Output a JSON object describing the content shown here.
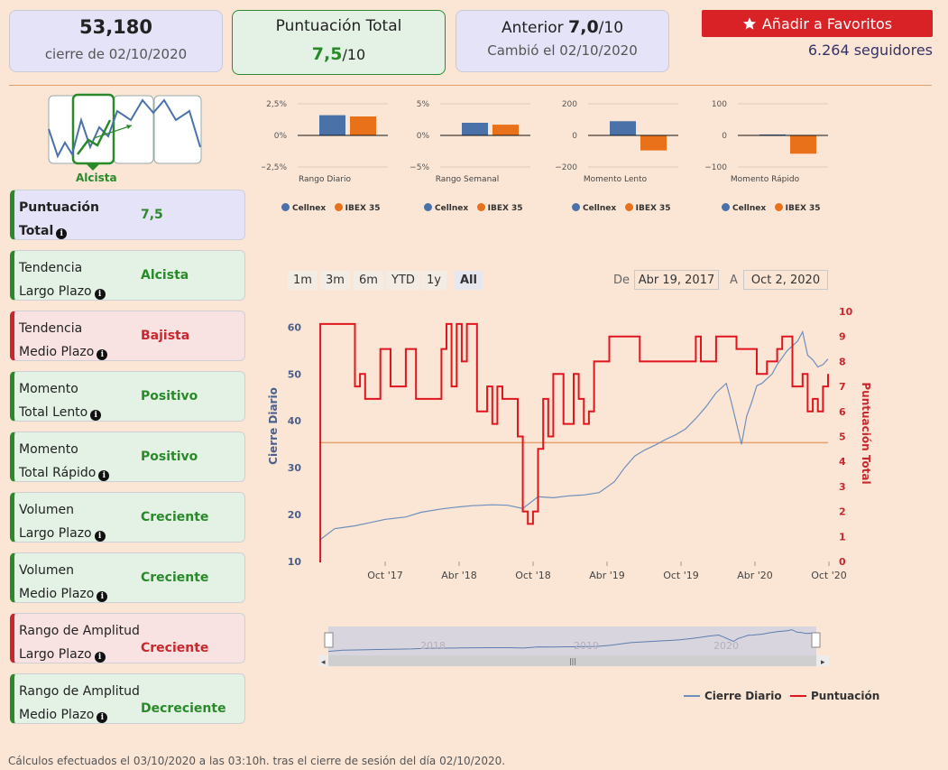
{
  "header": {
    "price": "53,180",
    "close_date": "cierre de 02/10/2020",
    "score_title": "Puntuación Total",
    "score_value": "7,5",
    "score_den": "/10",
    "prev_label": "Anterior",
    "prev_value": "7,0",
    "prev_den": "/10",
    "prev_changed": "Cambió el 02/10/2020",
    "fav_button": "Añadir a Favoritos",
    "followers": "6.264 seguidores"
  },
  "trend": {
    "label": "Alcista"
  },
  "indicators": [
    {
      "name1": "Puntuación",
      "name2": "Total",
      "value": "7,5",
      "status": "total"
    },
    {
      "name1": "Tendencia",
      "name2": "Largo Plazo",
      "value": "Alcista",
      "status": "pos"
    },
    {
      "name1": "Tendencia",
      "name2": "Medio Plazo",
      "value": "Bajista",
      "status": "neg"
    },
    {
      "name1": "Momento",
      "name2": "Total Lento",
      "value": "Positivo",
      "status": "pos"
    },
    {
      "name1": "Momento",
      "name2": "Total Rápido",
      "value": "Positivo",
      "status": "pos"
    },
    {
      "name1": "Volumen",
      "name2": "Largo Plazo",
      "value": "Creciente",
      "status": "pos"
    },
    {
      "name1": "Volumen",
      "name2": "Medio Plazo",
      "value": "Creciente",
      "status": "pos"
    },
    {
      "name1": "Rango de Amplitud",
      "name2": "Largo Plazo",
      "value": "Creciente",
      "status": "neg"
    },
    {
      "name1": "Rango de Amplitud",
      "name2": "Medio Plazo",
      "value": "Decreciente",
      "status": "pos"
    }
  ],
  "colors": {
    "cellnex": "#4a72a8",
    "ibex": "#e8711a",
    "score_line": "#e0151d",
    "accent_green": "#2a8a2a",
    "accent_red": "#c8282d"
  },
  "chart_data": [
    {
      "type": "bar",
      "title": "Rango Diario",
      "categories": [
        "Cellnex",
        "IBEX 35"
      ],
      "values": [
        1.6,
        1.5
      ],
      "ylim": [
        -2.5,
        2.5
      ],
      "tick_labels": [
        "2,5%",
        "0%",
        "−2,5%"
      ]
    },
    {
      "type": "bar",
      "title": "Rango Semanal",
      "categories": [
        "Cellnex",
        "IBEX 35"
      ],
      "values": [
        2.0,
        1.7
      ],
      "ylim": [
        -5,
        5
      ],
      "tick_labels": [
        "5%",
        "0%",
        "−5%"
      ]
    },
    {
      "type": "bar",
      "title": "Momento Lento",
      "categories": [
        "Cellnex",
        "IBEX 35"
      ],
      "values": [
        90,
        -95
      ],
      "ylim": [
        -200,
        200
      ],
      "tick_labels": [
        "200",
        "0",
        "−200"
      ]
    },
    {
      "type": "bar",
      "title": "Momento Rápido",
      "categories": [
        "Cellnex",
        "IBEX 35"
      ],
      "values": [
        3,
        -58
      ],
      "ylim": [
        -100,
        100
      ],
      "tick_labels": [
        "100",
        "0",
        "−100"
      ]
    },
    {
      "type": "line",
      "ylabel": "Cierre Diario",
      "y2label": "Puntuación Total",
      "ylim": [
        10,
        62
      ],
      "y2lim": [
        0,
        10
      ],
      "yticks": [
        "10",
        "20",
        "30",
        "40",
        "50",
        "60"
      ],
      "y2ticks": [
        "0",
        "1",
        "2",
        "3",
        "4",
        "5",
        "6",
        "7",
        "8",
        "9",
        "10"
      ],
      "xticks": [
        "Oct '17",
        "Abr '18",
        "Oct '18",
        "Abr '19",
        "Oct '19",
        "Abr '20",
        "Oct '20"
      ],
      "reference_score": 4.75,
      "series": [
        {
          "name": "Cierre Diario",
          "x": [
            0.0,
            0.03,
            0.07,
            0.1,
            0.13,
            0.17,
            0.2,
            0.24,
            0.27,
            0.3,
            0.34,
            0.37,
            0.4,
            0.43,
            0.46,
            0.49,
            0.52,
            0.55,
            0.58,
            0.6,
            0.62,
            0.64,
            0.66,
            0.68,
            0.7,
            0.72,
            0.74,
            0.76,
            0.78,
            0.8,
            0.81,
            0.83,
            0.84,
            0.85,
            0.86,
            0.87,
            0.89,
            0.9,
            0.92,
            0.94,
            0.95,
            0.96,
            0.97,
            0.98,
            0.99,
            1.0
          ],
          "values": [
            14.5,
            17.0,
            17.6,
            18.3,
            19.0,
            19.5,
            20.5,
            21.2,
            21.6,
            21.9,
            22.1,
            22.0,
            21.3,
            23.8,
            23.6,
            24.0,
            24.2,
            24.7,
            27.0,
            30.0,
            32.5,
            33.8,
            34.8,
            36.0,
            37.0,
            38.3,
            40.5,
            43.0,
            46.0,
            48.0,
            44.0,
            35.0,
            41.0,
            44.0,
            47.5,
            48.0,
            50.0,
            52.0,
            55.0,
            57.0,
            59.0,
            54.0,
            53.0,
            51.5,
            52.0,
            53.2
          ]
        },
        {
          "name": "Puntuación",
          "x": [
            0.0,
            0.002,
            0.06,
            0.07,
            0.08,
            0.09,
            0.12,
            0.14,
            0.17,
            0.19,
            0.24,
            0.25,
            0.26,
            0.27,
            0.28,
            0.29,
            0.3,
            0.31,
            0.33,
            0.34,
            0.35,
            0.36,
            0.39,
            0.4,
            0.41,
            0.42,
            0.43,
            0.44,
            0.45,
            0.46,
            0.48,
            0.5,
            0.51,
            0.52,
            0.53,
            0.54,
            0.56,
            0.57,
            0.6,
            0.63,
            0.66,
            0.7,
            0.74,
            0.75,
            0.78,
            0.8,
            0.82,
            0.84,
            0.86,
            0.88,
            0.9,
            0.91,
            0.93,
            0.95,
            0.96,
            0.97,
            0.98,
            0.99,
            1.0
          ],
          "values": [
            0.0,
            9.5,
            9.5,
            7.0,
            7.5,
            6.5,
            8.5,
            7.0,
            8.5,
            6.5,
            8.5,
            9.5,
            7.0,
            9.5,
            8.0,
            9.5,
            9.5,
            6.0,
            7.0,
            5.5,
            7.0,
            6.5,
            5.0,
            2.0,
            1.5,
            2.0,
            4.5,
            6.5,
            5.0,
            7.5,
            5.5,
            7.5,
            6.5,
            5.5,
            6.0,
            8.0,
            8.0,
            9.0,
            9.0,
            8.0,
            8.0,
            8.0,
            9.0,
            8.0,
            9.0,
            9.0,
            8.5,
            8.5,
            7.5,
            8.0,
            8.5,
            9.0,
            7.0,
            7.5,
            6.0,
            6.5,
            6.0,
            7.0,
            7.5
          ]
        }
      ]
    }
  ],
  "range_buttons": [
    "1m",
    "3m",
    "6m",
    "YTD",
    "1y",
    "All"
  ],
  "date_range": {
    "from_label": "De",
    "from": "Abr 19, 2017",
    "to_label": "A",
    "to": "Oct 2, 2020"
  },
  "navigator": {
    "labels": [
      "2018",
      "2019",
      "2020"
    ]
  },
  "legend": {
    "close": "Cierre Diario",
    "score": "Puntuación"
  },
  "footer": "Cálculos efectuados el 03/10/2020 a las 03:10h. tras el cierre de sesión del día 02/10/2020."
}
